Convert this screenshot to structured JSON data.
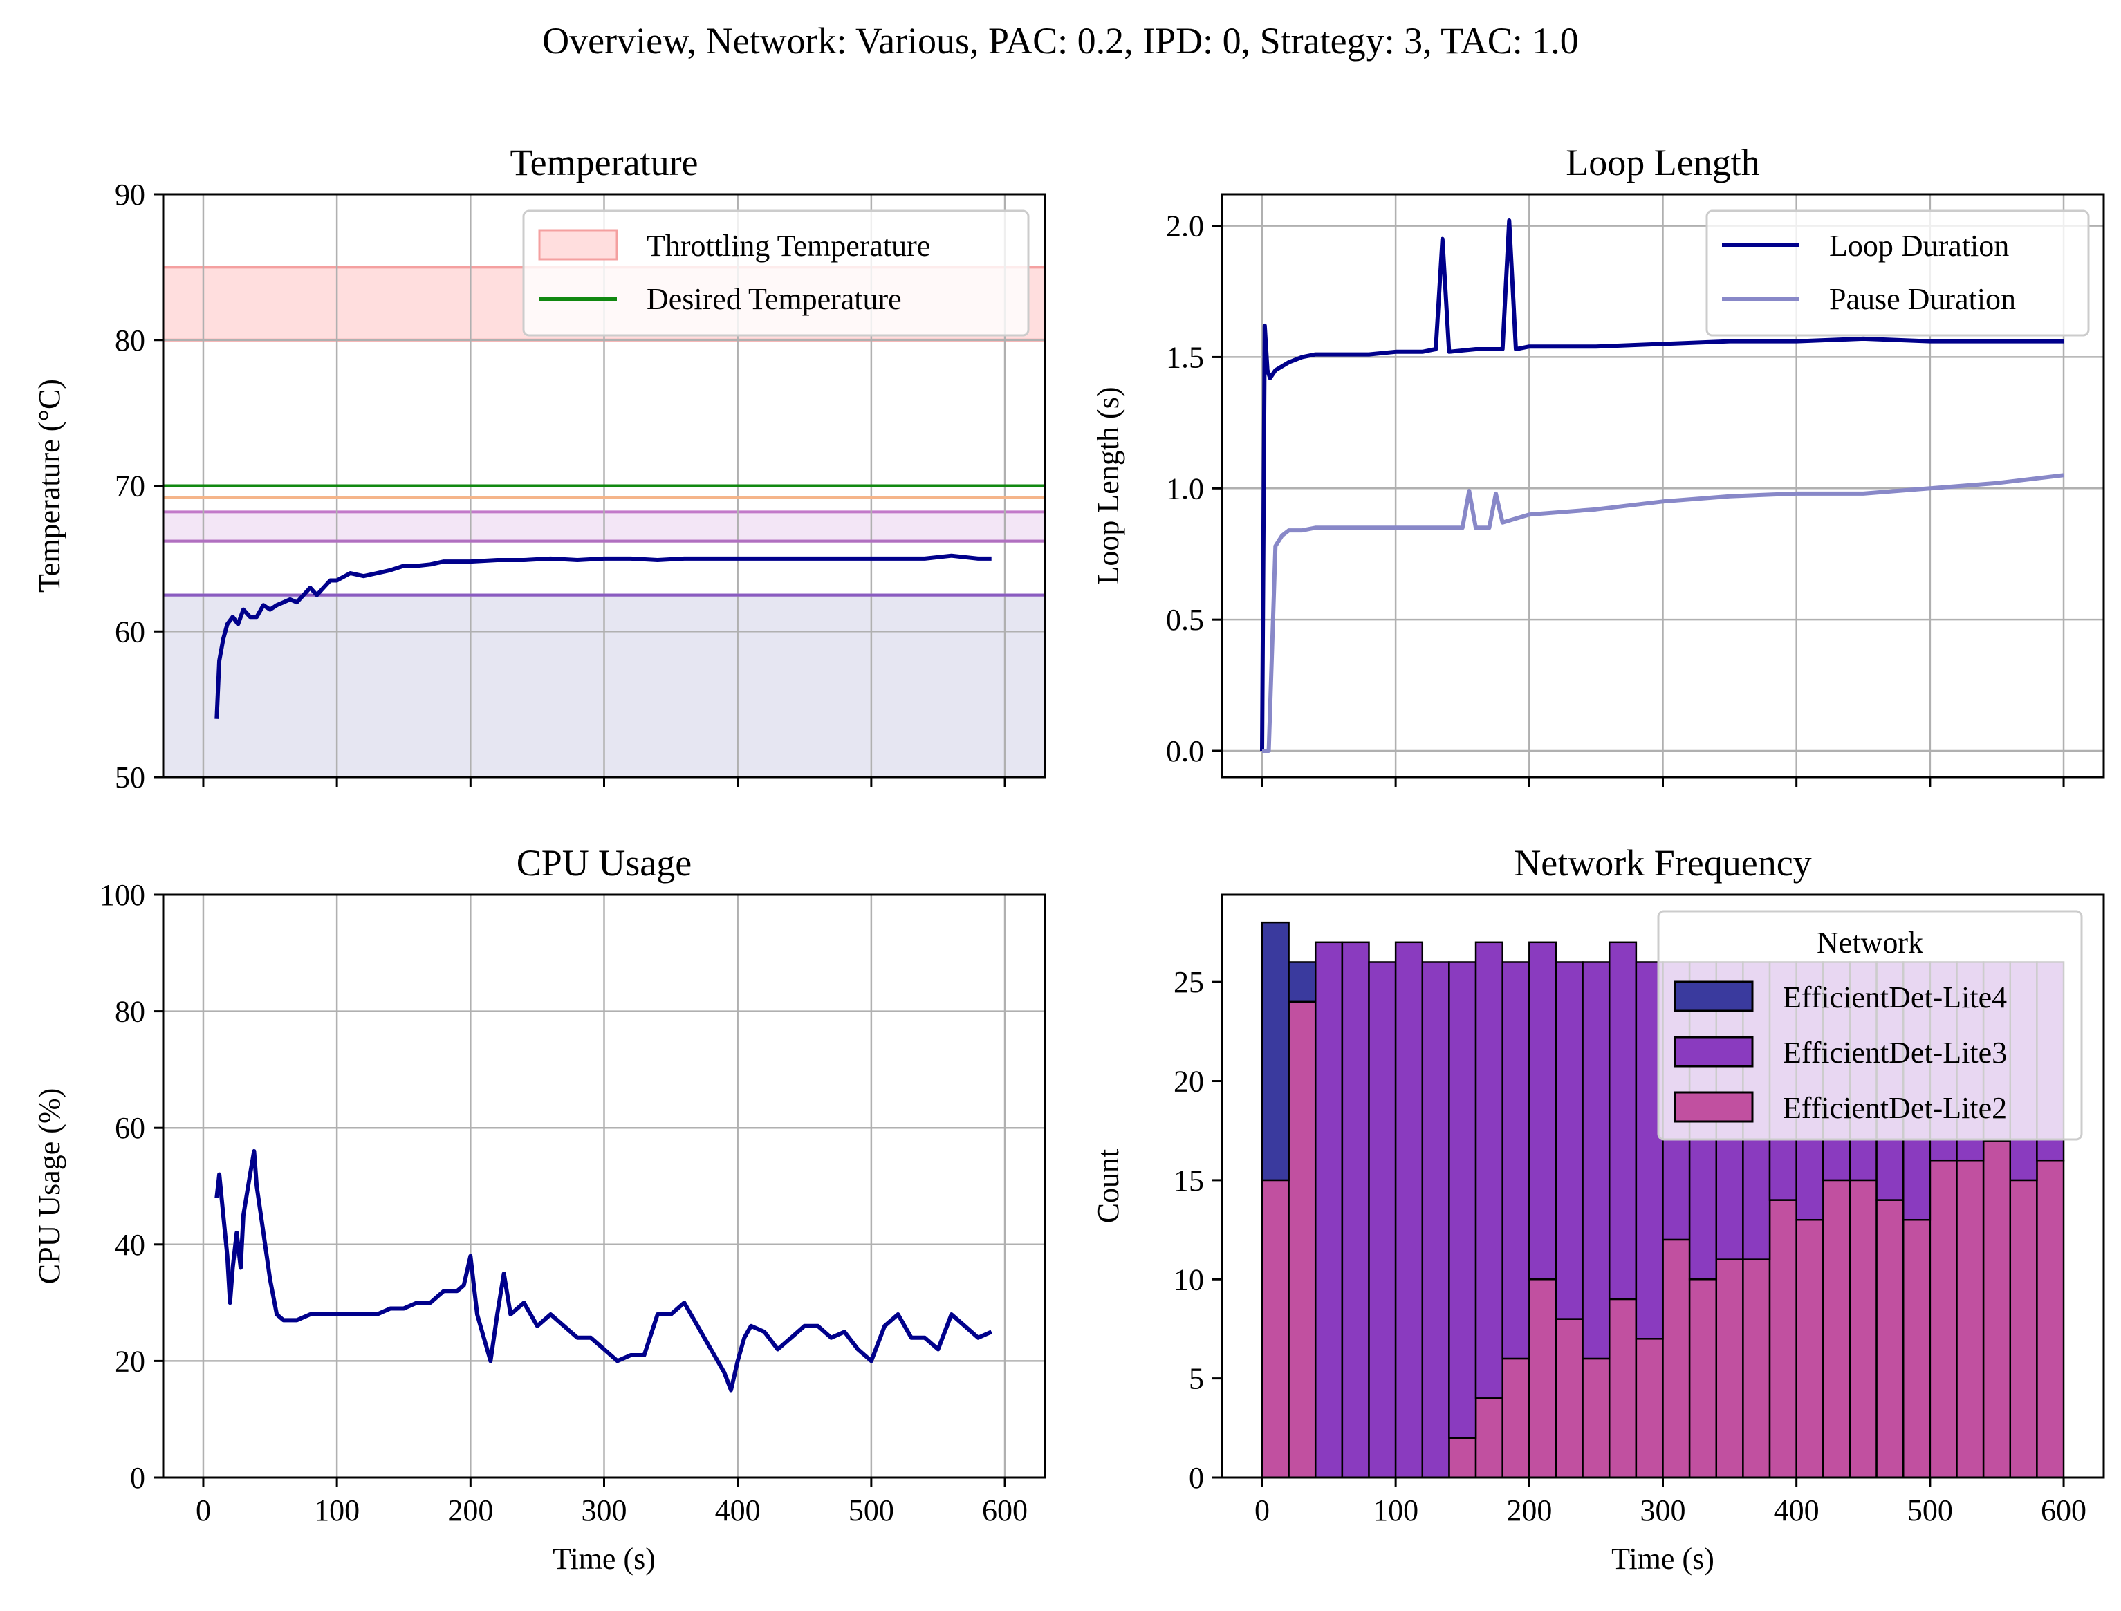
{
  "suptitle": "Overview, Network: Various, PAC: 0.2, IPD: 0, Strategy: 3, TAC: 1.0",
  "colors": {
    "navy": "#00008B",
    "pause": "#8888C8",
    "grid": "#b0b0b0",
    "throttle_fill": "#ffdede",
    "throttle_edge": "#f4a0a0",
    "desired": "#118811",
    "lite4": "#3A3A9E",
    "lite3": "#8A3BBF",
    "lite2": "#C150A0"
  },
  "chart_data": [
    {
      "id": "temperature",
      "type": "line",
      "title": "Temperature",
      "xlabel": "",
      "ylabel": "Temperature (°C)",
      "xlim": [
        -30,
        630
      ],
      "ylim": [
        50,
        90
      ],
      "xticks": [
        0,
        100,
        200,
        300,
        400,
        500,
        600
      ],
      "xtick_labels_shown": false,
      "yticks": [
        50,
        60,
        70,
        80,
        90
      ],
      "grid": true,
      "legend": {
        "position": "top-right",
        "entries": [
          "Throttling Temperature",
          "Desired Temperature"
        ]
      },
      "bands": [
        {
          "name": "Throttling Temperature",
          "from": 80,
          "to": 85,
          "fill": "#ffdede",
          "edge": "#f4a0a0"
        },
        {
          "from": 66.2,
          "to": 68.2,
          "fill": "#f3e6f6",
          "edge": "#c27ac9"
        },
        {
          "from": 50,
          "to": 62.5,
          "fill": "#e6e6f2",
          "edge": "#8a5cc0"
        }
      ],
      "hlines": [
        {
          "name": "Desired Temperature",
          "y": 70,
          "color": "#118811"
        },
        {
          "y": 69.2,
          "color": "#f5b58a"
        },
        {
          "y": 66.2,
          "color": "#b070c0"
        },
        {
          "y": 62.5,
          "color": "#8a5cc0"
        }
      ],
      "series": [
        {
          "x": [
            10,
            12,
            15,
            18,
            22,
            26,
            30,
            35,
            40,
            45,
            50,
            55,
            60,
            65,
            70,
            75,
            80,
            85,
            90,
            95,
            100,
            110,
            120,
            130,
            140,
            150,
            160,
            170,
            180,
            190,
            200,
            220,
            240,
            260,
            280,
            300,
            320,
            340,
            360,
            380,
            400,
            420,
            440,
            460,
            480,
            500,
            520,
            540,
            560,
            580,
            590
          ],
          "y": [
            54,
            58,
            59.5,
            60.5,
            61,
            60.5,
            61.5,
            61,
            61,
            61.8,
            61.5,
            61.8,
            62,
            62.2,
            62,
            62.5,
            63,
            62.5,
            63,
            63.5,
            63.5,
            64,
            63.8,
            64,
            64.2,
            64.5,
            64.5,
            64.6,
            64.8,
            64.8,
            64.8,
            64.9,
            64.9,
            65,
            64.9,
            65,
            65,
            64.9,
            65,
            65,
            65,
            65,
            65,
            65,
            65,
            65,
            65,
            65,
            65.2,
            65,
            65
          ]
        }
      ]
    },
    {
      "id": "loop-length",
      "type": "line",
      "title": "Loop Length",
      "xlabel": "",
      "ylabel": "Loop Length (s)",
      "xlim": [
        -30,
        630
      ],
      "ylim": [
        -0.1,
        2.12
      ],
      "xticks": [
        0,
        100,
        200,
        300,
        400,
        500,
        600
      ],
      "xtick_labels_shown": false,
      "yticks": [
        0.0,
        0.5,
        1.0,
        1.5,
        2.0
      ],
      "ytick_labels": [
        "0.0",
        "0.5",
        "1.0",
        "1.5",
        "2.0"
      ],
      "grid": true,
      "legend": {
        "position": "top-right",
        "entries": [
          "Loop Duration",
          "Pause Duration"
        ]
      },
      "series": [
        {
          "name": "Loop Duration",
          "x": [
            0,
            2,
            4,
            6,
            10,
            20,
            30,
            40,
            60,
            80,
            100,
            120,
            130,
            135,
            140,
            160,
            180,
            185,
            190,
            200,
            220,
            250,
            300,
            350,
            400,
            450,
            500,
            550,
            600
          ],
          "y": [
            0,
            1.62,
            1.45,
            1.42,
            1.45,
            1.48,
            1.5,
            1.51,
            1.51,
            1.51,
            1.52,
            1.52,
            1.53,
            1.95,
            1.52,
            1.53,
            1.53,
            2.02,
            1.53,
            1.54,
            1.54,
            1.54,
            1.55,
            1.56,
            1.56,
            1.57,
            1.56,
            1.56,
            1.56
          ]
        },
        {
          "name": "Pause Duration",
          "x": [
            0,
            5,
            10,
            15,
            20,
            25,
            30,
            40,
            50,
            60,
            100,
            150,
            155,
            160,
            170,
            175,
            180,
            200,
            250,
            300,
            350,
            400,
            450,
            500,
            550,
            600
          ],
          "y": [
            0,
            0,
            0.78,
            0.82,
            0.84,
            0.84,
            0.84,
            0.85,
            0.85,
            0.85,
            0.85,
            0.85,
            0.99,
            0.85,
            0.85,
            0.98,
            0.87,
            0.9,
            0.92,
            0.95,
            0.97,
            0.98,
            0.98,
            1.0,
            1.02,
            1.05
          ]
        }
      ]
    },
    {
      "id": "cpu-usage",
      "type": "line",
      "title": "CPU Usage",
      "xlabel": "Time (s)",
      "ylabel": "CPU Usage (%)",
      "xlim": [
        -30,
        630
      ],
      "ylim": [
        0,
        100
      ],
      "xticks": [
        0,
        100,
        200,
        300,
        400,
        500,
        600
      ],
      "yticks": [
        0,
        20,
        40,
        60,
        80,
        100
      ],
      "grid": true,
      "series": [
        {
          "x": [
            10,
            12,
            15,
            18,
            20,
            22,
            25,
            28,
            30,
            35,
            38,
            40,
            45,
            50,
            55,
            60,
            70,
            80,
            90,
            100,
            110,
            120,
            130,
            140,
            150,
            160,
            170,
            180,
            190,
            195,
            200,
            205,
            210,
            215,
            220,
            225,
            230,
            240,
            250,
            260,
            270,
            280,
            290,
            300,
            310,
            320,
            330,
            340,
            350,
            360,
            370,
            380,
            390,
            395,
            400,
            405,
            410,
            420,
            430,
            440,
            450,
            460,
            470,
            480,
            490,
            500,
            510,
            520,
            530,
            540,
            550,
            560,
            570,
            580,
            590
          ],
          "y": [
            48,
            52,
            45,
            38,
            30,
            36,
            42,
            36,
            45,
            52,
            56,
            50,
            42,
            34,
            28,
            27,
            27,
            28,
            28,
            28,
            28,
            28,
            28,
            29,
            29,
            30,
            30,
            32,
            32,
            33,
            38,
            28,
            24,
            20,
            28,
            35,
            28,
            30,
            26,
            28,
            26,
            24,
            24,
            22,
            20,
            21,
            21,
            28,
            28,
            30,
            26,
            22,
            18,
            15,
            20,
            24,
            26,
            25,
            22,
            24,
            26,
            26,
            24,
            25,
            22,
            20,
            26,
            28,
            24,
            24,
            22,
            28,
            26,
            24,
            25
          ]
        }
      ]
    },
    {
      "id": "network-frequency",
      "type": "bar",
      "stacked": true,
      "title": "Network Frequency",
      "xlabel": "Time (s)",
      "ylabel": "Count",
      "xlim": [
        -30,
        630
      ],
      "ylim": [
        0,
        29.4
      ],
      "xticks": [
        0,
        100,
        200,
        300,
        400,
        500,
        600
      ],
      "yticks": [
        0,
        5,
        10,
        15,
        20,
        25
      ],
      "grid": false,
      "bin_edges": [
        0,
        20,
        40,
        60,
        80,
        100,
        120,
        140,
        160,
        180,
        200,
        220,
        240,
        260,
        280,
        300,
        320,
        340,
        360,
        380,
        400,
        420,
        440,
        460,
        480,
        500,
        520,
        540,
        560,
        580,
        600
      ],
      "legend": {
        "position": "top-right",
        "title": "Network",
        "entries": [
          "EfficientDet-Lite4",
          "EfficientDet-Lite3",
          "EfficientDet-Lite2"
        ]
      },
      "series": [
        {
          "name": "EfficientDet-Lite2",
          "values": [
            15,
            24,
            0,
            0,
            0,
            0,
            0,
            2,
            4,
            6,
            10,
            8,
            6,
            9,
            7,
            12,
            10,
            11,
            11,
            14,
            13,
            15,
            15,
            14,
            13,
            16,
            16,
            17,
            15,
            16
          ]
        },
        {
          "name": "EfficientDet-Lite3",
          "values": [
            0,
            0,
            27,
            27,
            26,
            27,
            26,
            24,
            23,
            20,
            17,
            18,
            20,
            18,
            19,
            14,
            16,
            15,
            15,
            12,
            13,
            11,
            11,
            12,
            13,
            10,
            10,
            9,
            11,
            10
          ]
        },
        {
          "name": "EfficientDet-Lite4",
          "values": [
            13,
            2,
            0,
            0,
            0,
            0,
            0,
            0,
            0,
            0,
            0,
            0,
            0,
            0,
            0,
            0,
            0,
            0,
            0,
            0,
            0,
            0,
            0,
            0,
            0,
            0,
            0,
            0,
            0,
            0
          ]
        }
      ]
    }
  ]
}
